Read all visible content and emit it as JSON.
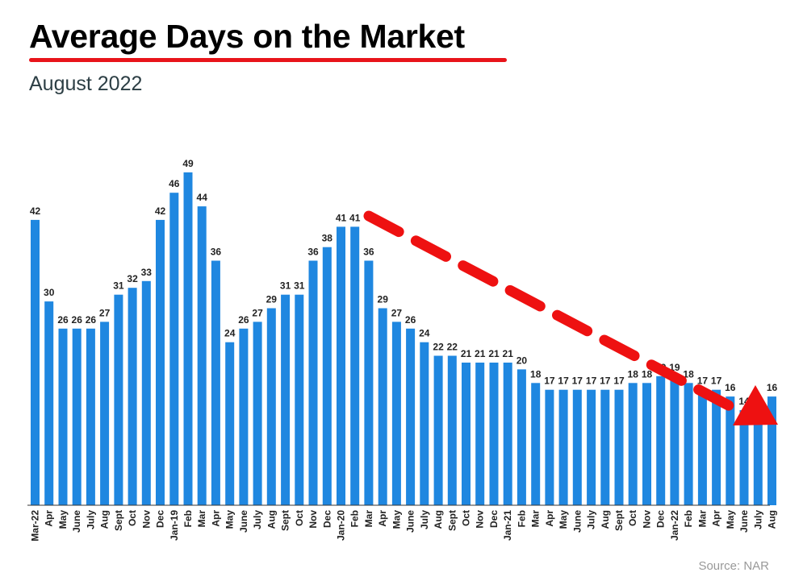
{
  "header": {
    "title": "Average Days on the Market",
    "subtitle": "August 2022",
    "source": "Source: NAR"
  },
  "colors": {
    "bar": "#1f87e0",
    "arrow": "#ee1111",
    "underline": "#e8141a"
  },
  "chart_data": {
    "type": "bar",
    "title": "Average Days on the Market",
    "subtitle": "August 2022",
    "xlabel": "",
    "ylabel": "",
    "ylim": [
      0,
      55
    ],
    "grid": false,
    "annotations": [
      "downward trend arrow"
    ],
    "categories": [
      "Mar-22",
      "Apr",
      "May",
      "June",
      "July",
      "Aug",
      "Sept",
      "Oct",
      "Nov",
      "Dec",
      "Jan-19",
      "Feb",
      "Mar",
      "Apr",
      "May",
      "June",
      "July",
      "Aug",
      "Sept",
      "Oct",
      "Nov",
      "Dec",
      "Jan-20",
      "Feb",
      "Mar",
      "Apr",
      "May",
      "June",
      "July",
      "Aug",
      "Sept",
      "Oct",
      "Nov",
      "Dec",
      "Jan-21",
      "Feb",
      "Mar",
      "Apr",
      "May",
      "June",
      "July",
      "Aug",
      "Sept",
      "Oct",
      "Nov",
      "Dec",
      "Jan-22",
      "Feb",
      "Mar",
      "Apr",
      "May",
      "June",
      "July",
      "Aug"
    ],
    "values": [
      42,
      30,
      26,
      26,
      26,
      27,
      31,
      32,
      33,
      42,
      46,
      49,
      44,
      36,
      24,
      26,
      27,
      29,
      31,
      31,
      36,
      38,
      41,
      41,
      36,
      29,
      27,
      26,
      24,
      22,
      22,
      21,
      21,
      21,
      21,
      20,
      18,
      17,
      17,
      17,
      17,
      17,
      17,
      18,
      18,
      19,
      19,
      18,
      17,
      17,
      16,
      14,
      14,
      16
    ]
  }
}
